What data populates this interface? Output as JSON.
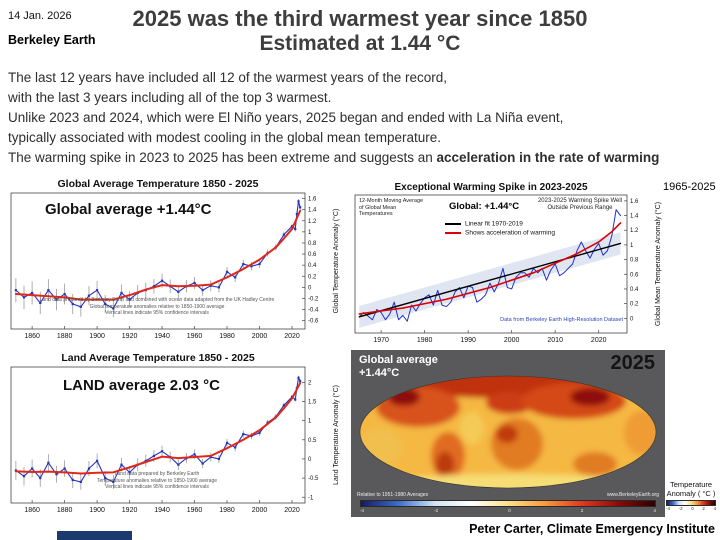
{
  "header": {
    "date": "14 Jan. 2026",
    "source": "Berkeley Earth",
    "title_line1": "2025 was the third warmest year since 1850",
    "title_line2": "Estimated at 1.44 °C"
  },
  "intro": {
    "line1": "The last 12 years have included all 12 of the warmest years of the record,",
    "line2": "with the last 3 years including all of the top 3 warmest.",
    "line3": "Unlike 2023 and 2024, which were El Niño years, 2025 began and ended with La Niña event,",
    "line4": "typically associated with modest cooling in the global mean temperature.",
    "line5_normal": "The warming spike in 2023 to 2025 has been extreme and suggests an ",
    "line5_bold": "acceleration in the rate of warming"
  },
  "footer": {
    "credit": "Peter Carter, Climate Emergency Institute"
  },
  "chart_data": [
    {
      "id": "global-average",
      "type": "line",
      "title": "Global Average Temperature 1850 - 2025",
      "annotation": "Global average +1.44°C",
      "ylabel": "Global Temperature Anomaly (°C)",
      "xlim": [
        1847,
        2028
      ],
      "ylim": [
        -0.75,
        1.7
      ],
      "xticks": [
        1860,
        1880,
        1900,
        1920,
        1940,
        1960,
        1980,
        2000,
        2020
      ],
      "yticks": [
        -0.6,
        -0.4,
        -0.2,
        0,
        0.2,
        0.4,
        0.6,
        0.8,
        1,
        1.2,
        1.4,
        1.6
      ],
      "captions": [
        "Land data prepared by Berkeley Earth and combined with ocean data adapted from the UK Hadley Centre",
        "Global temperature anomalies relative to 1850-1900 average",
        "Vertical lines indicate 95% confidence intervals"
      ],
      "error_bars": {
        "start": 0.22,
        "end": 0.04
      },
      "series": [
        {
          "name": "Annual global anomaly",
          "color": "#2433c0",
          "marker": true,
          "x": [
            1850,
            1855,
            1860,
            1865,
            1870,
            1875,
            1880,
            1885,
            1890,
            1895,
            1900,
            1905,
            1910,
            1915,
            1920,
            1925,
            1930,
            1935,
            1940,
            1945,
            1950,
            1955,
            1960,
            1965,
            1970,
            1975,
            1980,
            1985,
            1990,
            1995,
            2000,
            2005,
            2010,
            2015,
            2020,
            2022,
            2023,
            2024,
            2025
          ],
          "y": [
            -0.05,
            -0.18,
            -0.1,
            -0.28,
            -0.05,
            -0.22,
            -0.12,
            -0.3,
            -0.35,
            -0.15,
            -0.05,
            -0.3,
            -0.38,
            -0.1,
            -0.22,
            -0.1,
            -0.05,
            0.02,
            0.12,
            0.02,
            -0.08,
            0.02,
            0.08,
            -0.05,
            0.03,
            0.0,
            0.28,
            0.18,
            0.42,
            0.38,
            0.42,
            0.62,
            0.72,
            0.95,
            1.1,
            1.05,
            1.32,
            1.55,
            1.44
          ]
        },
        {
          "name": "Ten-year smoothed",
          "color": "#e02818",
          "width": 2,
          "x": [
            1850,
            1860,
            1870,
            1880,
            1890,
            1900,
            1910,
            1920,
            1930,
            1940,
            1950,
            1960,
            1970,
            1980,
            1990,
            2000,
            2010,
            2015,
            2020,
            2025
          ],
          "y": [
            -0.12,
            -0.14,
            -0.16,
            -0.18,
            -0.22,
            -0.22,
            -0.22,
            -0.14,
            -0.04,
            0.04,
            0.02,
            0.03,
            0.05,
            0.18,
            0.33,
            0.5,
            0.72,
            0.88,
            1.05,
            1.38
          ]
        }
      ]
    },
    {
      "id": "land-average",
      "type": "line",
      "title": "Land Average Temperature 1850 - 2025",
      "annotation": "LAND average 2.03 °C",
      "ylabel": "Land Temperature Anomaly (°C)",
      "xlim": [
        1847,
        2028
      ],
      "ylim": [
        -1.15,
        2.4
      ],
      "xticks": [
        1860,
        1880,
        1900,
        1920,
        1940,
        1960,
        1980,
        2000,
        2020
      ],
      "yticks": [
        -1,
        -0.5,
        0,
        0.5,
        1,
        1.5,
        2
      ],
      "captions": [
        "Land data prepared by Berkeley Earth",
        "Temperature anomalies relative to 1850-1900 average",
        "Vertical lines indicate 95% confidence intervals"
      ],
      "error_bars": {
        "start": 0.25,
        "end": 0.05
      },
      "series": [
        {
          "name": "Annual land anomaly",
          "color": "#2433c0",
          "marker": true,
          "x": [
            1850,
            1855,
            1860,
            1865,
            1870,
            1875,
            1880,
            1885,
            1890,
            1895,
            1900,
            1905,
            1910,
            1915,
            1920,
            1925,
            1930,
            1935,
            1940,
            1945,
            1950,
            1955,
            1960,
            1965,
            1970,
            1975,
            1980,
            1985,
            1990,
            1995,
            2000,
            2005,
            2010,
            2015,
            2020,
            2022,
            2023,
            2024,
            2025
          ],
          "y": [
            -0.3,
            -0.45,
            -0.25,
            -0.5,
            -0.1,
            -0.4,
            -0.25,
            -0.55,
            -0.6,
            -0.25,
            -0.05,
            -0.5,
            -0.6,
            -0.15,
            -0.35,
            -0.15,
            -0.05,
            0.08,
            0.2,
            0.05,
            -0.15,
            0.02,
            0.12,
            -0.12,
            0.05,
            0.0,
            0.42,
            0.3,
            0.65,
            0.6,
            0.68,
            0.95,
            1.1,
            1.4,
            1.62,
            1.55,
            1.85,
            2.12,
            2.03
          ]
        },
        {
          "name": "Ten-year smoothed",
          "color": "#e02818",
          "width": 2,
          "x": [
            1850,
            1860,
            1870,
            1880,
            1890,
            1900,
            1910,
            1920,
            1930,
            1940,
            1950,
            1960,
            1970,
            1980,
            1990,
            2000,
            2010,
            2015,
            2020,
            2025
          ],
          "y": [
            -0.32,
            -0.34,
            -0.33,
            -0.35,
            -0.38,
            -0.36,
            -0.35,
            -0.22,
            -0.08,
            0.06,
            0.02,
            0.05,
            0.08,
            0.28,
            0.5,
            0.75,
            1.08,
            1.32,
            1.58,
            1.98
          ]
        }
      ]
    },
    {
      "id": "warming-spike",
      "type": "line",
      "title": "Exceptional Warming Spike in 2023-2025",
      "range_label": "1965-2025",
      "subtitle": "12-Month Moving Average of Global Mean Temperatures",
      "global_label": "Global: +1.44°C",
      "spike_note": "2023-2025 Warming Spike Well Outside Previous Range",
      "legend": [
        {
          "label": "Linear fit 1970-2019",
          "color": "#000000"
        },
        {
          "label": "Shows acceleration of warming",
          "color": "#dd0000"
        }
      ],
      "source_note": "Data from Berkeley Earth High-Resolution Dataset",
      "ylabel": "Global Mean Temperature Anomaly (°C)",
      "xlim": [
        1964,
        2026.5
      ],
      "ylim": [
        -0.2,
        1.68
      ],
      "xticks": [
        1970,
        1980,
        1990,
        2000,
        2010,
        2020
      ],
      "yticks": [
        0,
        0.2,
        0.4,
        0.6,
        0.8,
        1,
        1.2,
        1.4,
        1.6
      ],
      "band_halfwidth": 0.15,
      "series": [
        {
          "name": "12-month moving average",
          "color": "#1f2fd0",
          "width": 1,
          "x": [
            1965,
            1966,
            1967,
            1968,
            1969,
            1970,
            1971,
            1972,
            1973,
            1974,
            1975,
            1976,
            1977,
            1978,
            1979,
            1980,
            1981,
            1982,
            1983,
            1984,
            1985,
            1986,
            1987,
            1988,
            1989,
            1990,
            1991,
            1992,
            1993,
            1994,
            1995,
            1996,
            1997,
            1998,
            1999,
            2000,
            2001,
            2002,
            2003,
            2004,
            2005,
            2006,
            2007,
            2008,
            2009,
            2010,
            2011,
            2012,
            2013,
            2014,
            2015,
            2016,
            2017,
            2018,
            2019,
            2020,
            2021,
            2022,
            2023,
            2024,
            2025
          ],
          "y": [
            0.02,
            0.08,
            0.03,
            -0.02,
            0.12,
            0.08,
            -0.02,
            0.06,
            0.22,
            -0.02,
            0.04,
            -0.04,
            0.18,
            0.1,
            0.2,
            0.28,
            0.32,
            0.18,
            0.38,
            0.18,
            0.16,
            0.22,
            0.36,
            0.42,
            0.28,
            0.44,
            0.42,
            0.22,
            0.26,
            0.32,
            0.48,
            0.36,
            0.48,
            0.68,
            0.42,
            0.4,
            0.56,
            0.62,
            0.62,
            0.56,
            0.68,
            0.62,
            0.68,
            0.52,
            0.66,
            0.74,
            0.58,
            0.62,
            0.68,
            0.74,
            0.92,
            1.04,
            0.92,
            0.82,
            0.94,
            1.02,
            0.86,
            0.92,
            1.12,
            1.48,
            1.4
          ]
        },
        {
          "name": "Linear fit 1970-2019",
          "color": "#000000",
          "width": 1.4,
          "role": "fit",
          "x": [
            1965,
            2025
          ],
          "y": [
            0.02,
            1.02
          ]
        },
        {
          "name": "Acceleration curve",
          "color": "#dd0000",
          "width": 1.6,
          "x": [
            1965,
            1975,
            1985,
            1995,
            2005,
            2015,
            2020,
            2023,
            2025
          ],
          "y": [
            0.06,
            0.14,
            0.26,
            0.42,
            0.62,
            0.88,
            1.04,
            1.18,
            1.3
          ]
        }
      ]
    },
    {
      "id": "anomaly-map",
      "type": "heatmap",
      "overlay_line1": "Global average",
      "overlay_line2": "+1.44°C",
      "year": "2025",
      "baseline_note": "Relative to 1951-1980 Averages",
      "website": "www.BerkeleyEarth.org",
      "colorbar_label_line1": "Temperature",
      "colorbar_label_line2": "Anomaly ( °C )",
      "colorbar_ticks": [
        -4,
        -2,
        0,
        2,
        4
      ],
      "palette": [
        "#161a5e",
        "#3b6bc9",
        "#cfe3f5",
        "#ffffff",
        "#fde289",
        "#f89b3c",
        "#e03a1e",
        "#8a0b0b",
        "#2b0000"
      ],
      "description": "World map of 2025 temperature anomalies; nearly all regions show warm anomalies (yellow to dark red), strongest over the Arctic and northern continents."
    }
  ]
}
